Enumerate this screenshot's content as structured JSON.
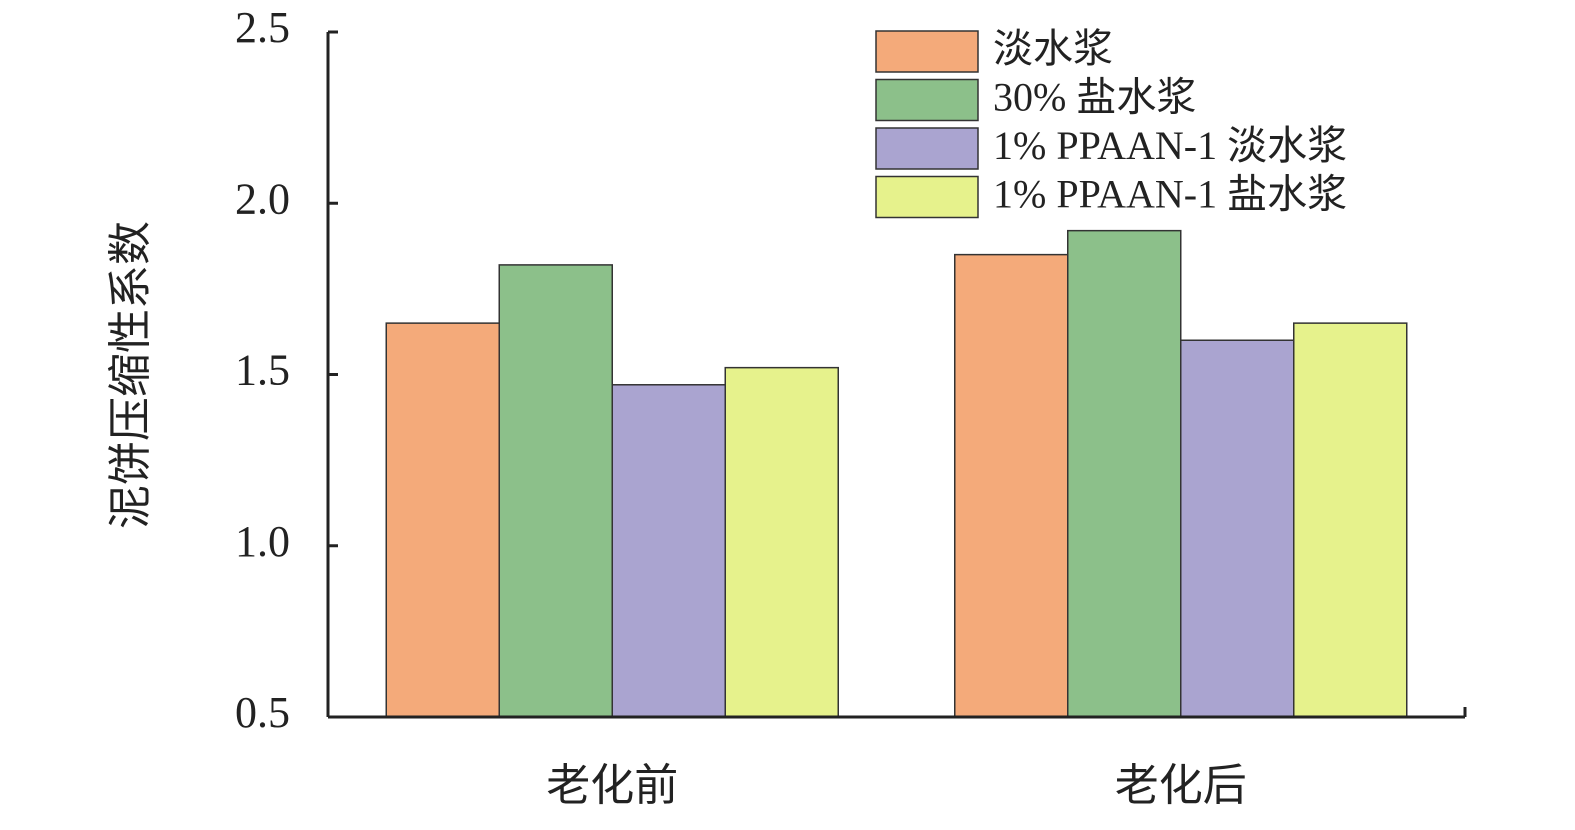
{
  "chart_data": {
    "type": "bar",
    "y_label": "泥饼压缩性系数",
    "categories": [
      "老化前",
      "老化后"
    ],
    "series": [
      {
        "name": "淡水浆",
        "color": "#f4aa7a",
        "values": [
          1.65,
          1.85
        ]
      },
      {
        "name": "30% 盐水浆",
        "color": "#8cc08a",
        "values": [
          1.82,
          1.92
        ]
      },
      {
        "name": "1% PPAAN-1 淡水浆",
        "color": "#aaa4d0",
        "values": [
          1.47,
          1.6
        ]
      },
      {
        "name": "1% PPAAN-1 盐水浆",
        "color": "#e6f28c",
        "values": [
          1.52,
          1.65
        ]
      }
    ],
    "ylim": [
      0.5,
      2.5
    ],
    "yticks": [
      0.5,
      {
        "value": 1.0,
        "label": "1.0"
      },
      1.5,
      {
        "value": 2.0,
        "label": "2.0"
      },
      2.5
    ],
    "legend": "top-right"
  }
}
